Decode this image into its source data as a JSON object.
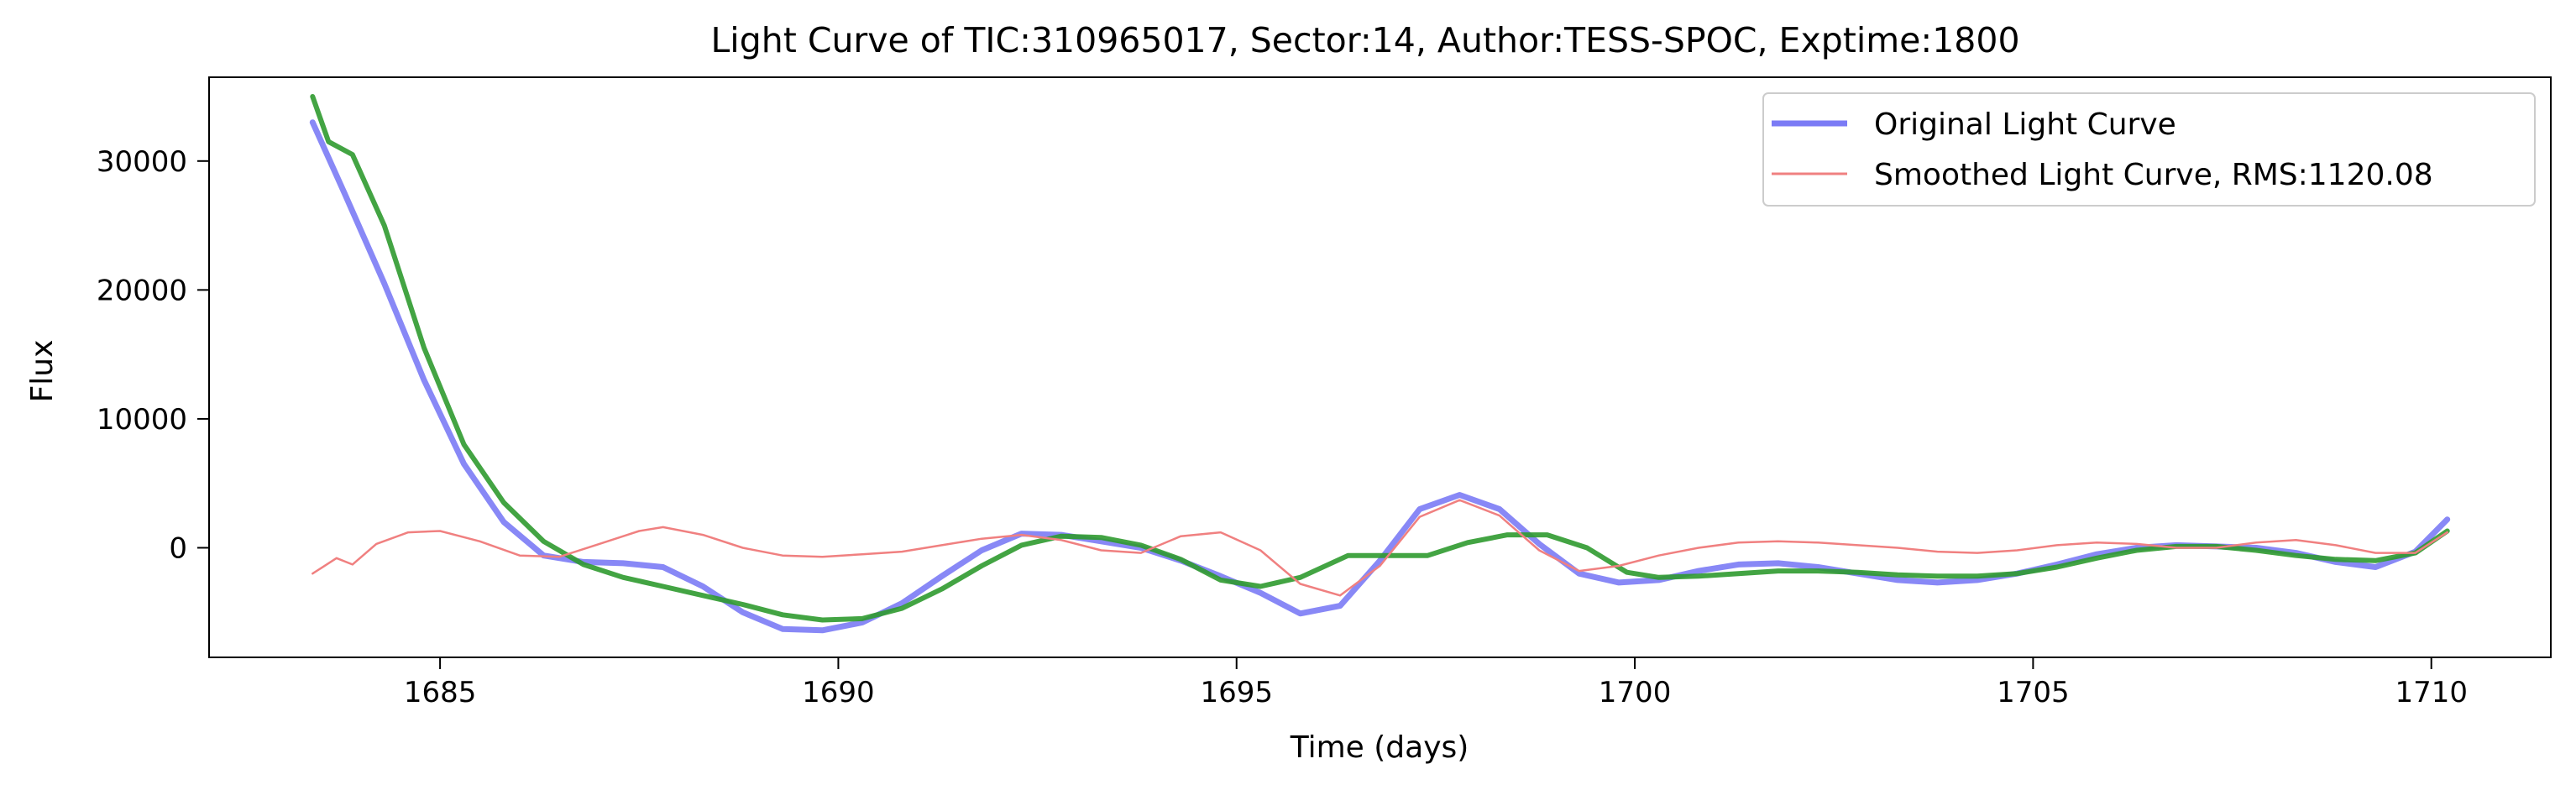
{
  "chart_data": {
    "type": "line",
    "title": "Light Curve of TIC:310965017, Sector:14, Author:TESS-SPOC, Exptime:1800",
    "xlabel": "Time (days)",
    "ylabel": "Flux",
    "xlim": [
      1682.1,
      1711.5
    ],
    "ylim": [
      -8500,
      36500
    ],
    "xticks": [
      1685,
      1690,
      1695,
      1700,
      1705,
      1710
    ],
    "xtick_labels": [
      "1685",
      "1690",
      "1695",
      "1700",
      "1705",
      "1710"
    ],
    "yticks": [
      0,
      10000,
      20000,
      30000
    ],
    "ytick_labels": [
      "0",
      "10000",
      "20000",
      "30000"
    ],
    "grid": false,
    "legend_position": "top-right",
    "legend": [
      {
        "label": "Original Light Curve",
        "series": 0
      },
      {
        "label": "Smoothed Light Curve, RMS:1120.08",
        "series": 2
      }
    ],
    "series": [
      {
        "color": "#7b7bf5",
        "x": [
          1683.4,
          1683.8,
          1684.3,
          1684.8,
          1685.3,
          1685.8,
          1686.3,
          1686.8,
          1687.3,
          1687.8,
          1688.3,
          1688.8,
          1689.3,
          1689.8,
          1690.3,
          1690.8,
          1691.3,
          1691.8,
          1692.3,
          1692.8,
          1693.3,
          1693.8,
          1694.3,
          1694.8,
          1695.3,
          1695.8,
          1696.3,
          1696.8,
          1697.3,
          1697.8,
          1698.3,
          1698.8,
          1699.3,
          1699.8,
          1700.3,
          1700.8,
          1701.3,
          1701.8,
          1702.3,
          1702.8,
          1703.3,
          1703.8,
          1704.3,
          1704.8,
          1705.3,
          1705.8,
          1706.3,
          1706.8,
          1707.3,
          1707.8,
          1708.3,
          1708.8,
          1709.3,
          1709.8,
          1710.2
        ],
        "y": [
          33000,
          27500,
          20500,
          13000,
          6500,
          2000,
          -600,
          -1100,
          -1200,
          -1500,
          -3000,
          -5000,
          -6300,
          -6400,
          -5800,
          -4300,
          -2200,
          -200,
          1100,
          1000,
          500,
          0,
          -1000,
          -2200,
          -3500,
          -5100,
          -4500,
          -1000,
          3000,
          4100,
          3000,
          300,
          -2000,
          -2700,
          -2500,
          -1800,
          -1300,
          -1200,
          -1500,
          -2000,
          -2500,
          -2700,
          -2500,
          -2000,
          -1300,
          -500,
          0,
          200,
          100,
          0,
          -400,
          -1100,
          -1500,
          -300,
          2200
        ]
      },
      {
        "color": "#2f9a2f",
        "x": [
          1683.4,
          1683.6,
          1683.9,
          1684.3,
          1684.8,
          1685.3,
          1685.8,
          1686.3,
          1686.8,
          1687.3,
          1687.8,
          1688.3,
          1688.8,
          1689.3,
          1689.8,
          1690.3,
          1690.8,
          1691.3,
          1691.8,
          1692.3,
          1692.8,
          1693.3,
          1693.8,
          1694.3,
          1694.8,
          1695.3,
          1695.8,
          1696.4,
          1697.4,
          1697.9,
          1698.4,
          1698.9,
          1699.4,
          1699.9,
          1700.3,
          1700.8,
          1701.3,
          1701.8,
          1702.3,
          1702.8,
          1703.3,
          1703.8,
          1704.3,
          1704.8,
          1705.3,
          1705.8,
          1706.3,
          1706.8,
          1707.3,
          1707.8,
          1708.3,
          1708.8,
          1709.3,
          1709.8,
          1710.2
        ],
        "y": [
          35000,
          31500,
          30500,
          25000,
          15500,
          8000,
          3500,
          500,
          -1300,
          -2300,
          -3000,
          -3700,
          -4400,
          -5200,
          -5600,
          -5500,
          -4700,
          -3200,
          -1400,
          200,
          900,
          800,
          200,
          -900,
          -2500,
          -3000,
          -2300,
          -600,
          -600,
          400,
          1000,
          1000,
          0,
          -1900,
          -2300,
          -2200,
          -2000,
          -1800,
          -1800,
          -1900,
          -2100,
          -2200,
          -2200,
          -2000,
          -1500,
          -800,
          -200,
          100,
          100,
          -200,
          -600,
          -900,
          -1000,
          -400,
          1300
        ]
      },
      {
        "color": "#f08080",
        "x": [
          1683.4,
          1683.7,
          1683.9,
          1684.2,
          1684.6,
          1685.0,
          1685.5,
          1686.0,
          1686.5,
          1687.0,
          1687.5,
          1687.8,
          1688.3,
          1688.8,
          1689.3,
          1689.8,
          1690.3,
          1690.8,
          1691.3,
          1691.8,
          1692.3,
          1692.8,
          1693.3,
          1693.8,
          1694.3,
          1694.8,
          1695.3,
          1695.8,
          1696.3,
          1696.8,
          1697.3,
          1697.8,
          1698.3,
          1698.8,
          1699.3,
          1699.8,
          1700.3,
          1700.8,
          1701.3,
          1701.8,
          1702.3,
          1702.8,
          1703.3,
          1703.8,
          1704.3,
          1704.8,
          1705.3,
          1705.8,
          1706.3,
          1706.8,
          1707.3,
          1707.8,
          1708.3,
          1708.8,
          1709.3,
          1709.8,
          1710.2
        ],
        "y": [
          -2000,
          -800,
          -1300,
          300,
          1200,
          1300,
          500,
          -600,
          -700,
          300,
          1300,
          1600,
          1000,
          0,
          -600,
          -700,
          -500,
          -300,
          200,
          700,
          1000,
          600,
          -200,
          -400,
          900,
          1200,
          -200,
          -2800,
          -3700,
          -1400,
          2400,
          3700,
          2500,
          -200,
          -1800,
          -1400,
          -600,
          0,
          400,
          500,
          400,
          200,
          0,
          -300,
          -400,
          -200,
          200,
          400,
          300,
          0,
          0,
          400,
          600,
          200,
          -400,
          -400,
          1200
        ]
      }
    ]
  }
}
